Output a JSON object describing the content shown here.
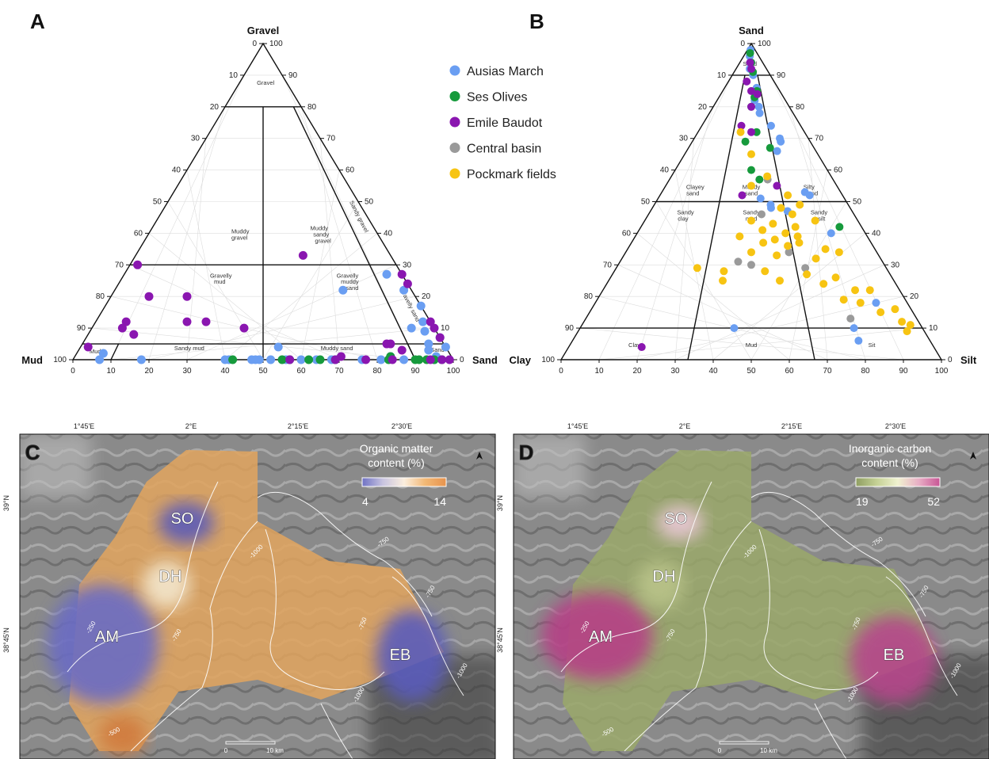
{
  "panels": {
    "a": "A",
    "b": "B",
    "c": "C",
    "d": "D"
  },
  "legend": [
    {
      "name": "Ausias March",
      "color": "#6a9ef2"
    },
    {
      "name": "Ses Olives",
      "color": "#169a3c"
    },
    {
      "name": "Emile Baudot",
      "color": "#8a16b0"
    },
    {
      "name": "Central basin",
      "color": "#9a9a9a"
    },
    {
      "name": "Pockmark fields",
      "color": "#f7c412"
    }
  ],
  "chart_data": [
    {
      "type": "scatter",
      "subtype": "ternary",
      "panel": "A",
      "apex_labels": {
        "top": "Gravel",
        "left": "Mud",
        "right": "Sand"
      },
      "ticks": [
        0,
        10,
        20,
        30,
        40,
        50,
        60,
        70,
        80,
        90,
        100
      ],
      "left_ticks": [
        "0",
        "10",
        "20",
        "30",
        "40",
        "50",
        "60",
        "70",
        "80",
        "90",
        "100"
      ],
      "right_ticks": [
        "100",
        "90",
        "80",
        "70",
        "60",
        "50",
        "40",
        "30",
        "20",
        "10",
        "0"
      ],
      "zones": [
        {
          "text": "Gravel",
          "mud_frac": 0.45,
          "gravel": 87
        },
        {
          "text": "Muddy",
          "mud_frac": 0.6,
          "gravel": 40
        },
        {
          "text": "gravel",
          "mud_frac": 0.6,
          "gravel": 38
        },
        {
          "text": "Muddy",
          "mud_frac": 0.25,
          "gravel": 41
        },
        {
          "text": "sandy",
          "mud_frac": 0.25,
          "gravel": 39
        },
        {
          "text": "gravel",
          "mud_frac": 0.25,
          "gravel": 37
        },
        {
          "text": "Gravelly",
          "mud_frac": 0.65,
          "gravel": 26
        },
        {
          "text": "mud",
          "mud_frac": 0.65,
          "gravel": 24
        },
        {
          "text": "Gravelly",
          "mud_frac": 0.2,
          "gravel": 26
        },
        {
          "text": "muddy",
          "mud_frac": 0.2,
          "gravel": 24
        },
        {
          "text": "sand",
          "mud_frac": 0.2,
          "gravel": 22
        },
        {
          "text": "Mud",
          "mud_frac": 0.95,
          "gravel": 2
        },
        {
          "text": "Sandy mud",
          "mud_frac": 0.7,
          "gravel": 3
        },
        {
          "text": "Muddy sand",
          "mud_frac": 0.3,
          "gravel": 3
        },
        {
          "text": "Sand",
          "mud_frac": 0.03,
          "gravel": 2.5
        }
      ],
      "rotated_zones": [
        {
          "text": "Sandy gravel",
          "mud_frac": 0.05,
          "gravel": 45
        },
        {
          "text": "Gravelly sand",
          "mud_frac": 0.04,
          "gravel": 17
        }
      ],
      "series": [
        {
          "name": "Ausias March",
          "points": [
            [
              69,
              27
            ],
            [
              76,
              22
            ],
            [
              60,
              22
            ],
            [
              84,
              10
            ],
            [
              85,
              17
            ],
            [
              86,
              12
            ],
            [
              88,
              9
            ],
            [
              91,
              5
            ],
            [
              92,
              3
            ],
            [
              93,
              7
            ],
            [
              95,
              1
            ],
            [
              96,
              4
            ],
            [
              97,
              0
            ],
            [
              7,
              2
            ],
            [
              7,
              0
            ],
            [
              18,
              0
            ],
            [
              40,
              0
            ],
            [
              47,
              0
            ],
            [
              48,
              0
            ],
            [
              52,
              0
            ],
            [
              56,
              0
            ],
            [
              60,
              0
            ],
            [
              64,
              0
            ],
            [
              68,
              0
            ],
            [
              76,
              0
            ],
            [
              81,
              0
            ],
            [
              83,
              1
            ],
            [
              87,
              0
            ],
            [
              95,
              0
            ],
            [
              52,
              4
            ],
            [
              41,
              0
            ],
            [
              49,
              0
            ]
          ]
        },
        {
          "name": "Ses Olives",
          "points": [
            [
              42,
              0
            ],
            [
              55,
              0
            ],
            [
              57,
              0
            ],
            [
              62,
              0
            ],
            [
              65,
              0
            ],
            [
              69,
              0
            ],
            [
              83,
              0
            ],
            [
              90,
              0
            ],
            [
              91,
              0
            ],
            [
              93,
              0
            ],
            [
              95,
              0
            ],
            [
              97,
              0
            ],
            [
              83,
              1
            ]
          ]
        },
        {
          "name": "Emile Baudot",
          "points": [
            [
              2,
              30
            ],
            [
              8,
              12
            ],
            [
              8,
              10
            ],
            [
              12,
              8
            ],
            [
              10,
              20
            ],
            [
              20,
              20
            ],
            [
              24,
              12
            ],
            [
              29,
              12
            ],
            [
              40,
              10
            ],
            [
              44,
              33
            ],
            [
              88,
              27
            ],
            [
              92,
              24
            ],
            [
              94,
              12
            ],
            [
              93,
              7
            ],
            [
              94,
              10
            ],
            [
              2,
              4
            ],
            [
              80,
              5
            ],
            [
              81,
              5
            ],
            [
              85,
              3
            ],
            [
              70,
              1
            ],
            [
              77,
              0
            ],
            [
              84,
              0
            ],
            [
              94,
              0
            ],
            [
              97,
              0
            ],
            [
              99,
              0
            ],
            [
              57,
              0
            ],
            [
              69,
              0
            ]
          ]
        }
      ]
    },
    {
      "type": "scatter",
      "subtype": "ternary",
      "panel": "B",
      "apex_labels": {
        "top": "Sand",
        "left": "Clay",
        "right": "Silt"
      },
      "ticks": [
        0,
        10,
        20,
        30,
        40,
        50,
        60,
        70,
        80,
        90,
        100
      ],
      "left_ticks": [
        "0",
        "10",
        "20",
        "30",
        "40",
        "50",
        "60",
        "70",
        "80",
        "90",
        "100"
      ],
      "right_ticks": [
        "100",
        "90",
        "80",
        "70",
        "60",
        "50",
        "40",
        "30",
        "20",
        "10",
        "0"
      ],
      "zones": [
        {
          "text": "Sand",
          "silt_frac": 0.45,
          "sand": 93
        },
        {
          "text": "Clayey",
          "silt_frac": 0.18,
          "sand": 54
        },
        {
          "text": "sand",
          "silt_frac": 0.18,
          "sand": 52
        },
        {
          "text": "Muddy",
          "silt_frac": 0.5,
          "sand": 54
        },
        {
          "text": "sand",
          "silt_frac": 0.5,
          "sand": 52
        },
        {
          "text": "Silty",
          "silt_frac": 0.83,
          "sand": 54
        },
        {
          "text": "sand",
          "silt_frac": 0.83,
          "sand": 52
        },
        {
          "text": "Sandy",
          "silt_frac": 0.18,
          "sand": 46
        },
        {
          "text": "clay",
          "silt_frac": 0.18,
          "sand": 44
        },
        {
          "text": "Sandy",
          "silt_frac": 0.5,
          "sand": 46
        },
        {
          "text": "mud",
          "silt_frac": 0.5,
          "sand": 44
        },
        {
          "text": "Sandy",
          "silt_frac": 0.83,
          "sand": 46
        },
        {
          "text": "silt",
          "silt_frac": 0.83,
          "sand": 44
        },
        {
          "text": "Clay",
          "silt_frac": 0.18,
          "sand": 4
        },
        {
          "text": "Mud",
          "silt_frac": 0.5,
          "sand": 4
        },
        {
          "text": "Sit",
          "silt_frac": 0.83,
          "sand": 4
        }
      ],
      "series": [
        {
          "name": "Ausias March",
          "points": [
            [
              0.4,
              98
            ],
            [
              0.4,
              96
            ],
            [
              0.55,
              90
            ],
            [
              0.45,
              92
            ],
            [
              0.6,
              86
            ],
            [
              0.55,
              82
            ],
            [
              0.6,
              80
            ],
            [
              0.6,
              78
            ],
            [
              0.7,
              74
            ],
            [
              0.75,
              70
            ],
            [
              0.75,
              69
            ],
            [
              0.7,
              66
            ],
            [
              0.8,
              53
            ],
            [
              0.82,
              52
            ],
            [
              0.55,
              51
            ],
            [
              0.6,
              49
            ],
            [
              0.6,
              48
            ],
            [
              0.68,
              47
            ],
            [
              0.85,
              40
            ],
            [
              0.9,
              18
            ],
            [
              0.8,
              10
            ],
            [
              0.45,
              10
            ],
            [
              0.8,
              6
            ]
          ]
        },
        {
          "name": "Ses Olives",
          "points": [
            [
              0.4,
              97
            ],
            [
              0.5,
              94
            ],
            [
              0.55,
              91
            ],
            [
              0.6,
              85
            ],
            [
              0.55,
              83
            ],
            [
              0.5,
              80
            ],
            [
              0.55,
              72
            ],
            [
              0.45,
              69
            ],
            [
              0.65,
              67
            ],
            [
              0.5,
              60
            ],
            [
              0.55,
              57
            ],
            [
              0.9,
              42
            ]
          ]
        },
        {
          "name": "Emile Baudot",
          "points": [
            [
              0.45,
              94
            ],
            [
              0.5,
              92
            ],
            [
              0.4,
              88
            ],
            [
              0.5,
              85
            ],
            [
              0.6,
              84
            ],
            [
              0.5,
              80
            ],
            [
              0.4,
              74
            ],
            [
              0.5,
              72
            ],
            [
              0.65,
              55
            ],
            [
              0.45,
              52
            ],
            [
              0.2,
              4
            ]
          ]
        },
        {
          "name": "Central basin",
          "points": [
            [
              0.6,
              57
            ],
            [
              0.55,
              46
            ],
            [
              0.65,
              34
            ],
            [
              0.45,
              31
            ],
            [
              0.5,
              30
            ],
            [
              0.7,
              29
            ],
            [
              0.8,
              13
            ]
          ]
        },
        {
          "name": "Pockmark fields",
          "points": [
            [
              0.4,
              72
            ],
            [
              0.5,
              65
            ],
            [
              0.6,
              58
            ],
            [
              0.5,
              55
            ],
            [
              0.7,
              52
            ],
            [
              0.75,
              49
            ],
            [
              0.65,
              48
            ],
            [
              0.7,
              46
            ],
            [
              0.8,
              44
            ],
            [
              0.5,
              44
            ],
            [
              0.6,
              43
            ],
            [
              0.7,
              42
            ],
            [
              0.55,
              41
            ],
            [
              0.65,
              40
            ],
            [
              0.7,
              39
            ],
            [
              0.45,
              39
            ],
            [
              0.6,
              38
            ],
            [
              0.7,
              37
            ],
            [
              0.55,
              37
            ],
            [
              0.65,
              36
            ],
            [
              0.8,
              35
            ],
            [
              0.85,
              34
            ],
            [
              0.5,
              34
            ],
            [
              0.6,
              33
            ],
            [
              0.75,
              32
            ],
            [
              0.3,
              29
            ],
            [
              0.4,
              28
            ],
            [
              0.55,
              28
            ],
            [
              0.7,
              27
            ],
            [
              0.8,
              26
            ],
            [
              0.4,
              25
            ],
            [
              0.6,
              25
            ],
            [
              0.75,
              24
            ],
            [
              0.85,
              22
            ],
            [
              0.9,
              22
            ],
            [
              0.8,
              19
            ],
            [
              0.85,
              18
            ],
            [
              0.95,
              16
            ],
            [
              0.9,
              15
            ],
            [
              0.95,
              12
            ],
            [
              0.97,
              11
            ],
            [
              0.95,
              9
            ]
          ]
        }
      ]
    }
  ],
  "maps": {
    "coords": {
      "lon": [
        "1°45'E",
        "2°E",
        "2°15'E",
        "2°30'E"
      ],
      "lat": [
        "39°N",
        "38°45'N"
      ]
    },
    "sites": [
      "SO",
      "DH",
      "AM",
      "EB"
    ],
    "contours": [
      "-250",
      "-500",
      "-750",
      "-750",
      "-1000",
      "-1000",
      "-750",
      "-750",
      "-1000"
    ],
    "c": {
      "title1": "Organic matter",
      "title2": "content (%)",
      "min": "4",
      "max": "14",
      "colors": [
        "#6f72c4",
        "#c9c5e0",
        "#fbeede",
        "#f2b875",
        "#e7934d"
      ]
    },
    "d": {
      "title1": "Inorganic carbon",
      "title2": "content (%)",
      "min": "19",
      "max": "52",
      "colors": [
        "#8f9e62",
        "#c5d195",
        "#f0f2d0",
        "#e8aec5",
        "#c85595"
      ]
    },
    "scale": {
      "zero": "0",
      "end": "10 km"
    }
  }
}
